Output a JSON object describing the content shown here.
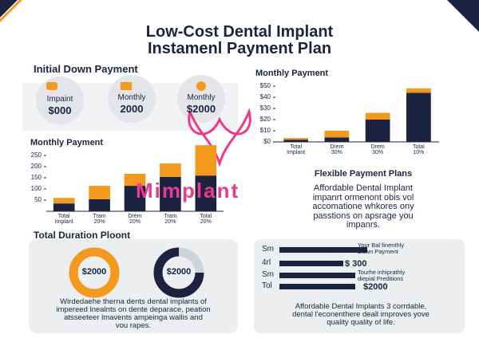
{
  "header": {
    "title": [
      "Low-Cost Dental Implant",
      "Instamenl Payment Plan"
    ]
  },
  "down_payment": {
    "title": "Initial Down Payment",
    "items": [
      {
        "label": "Impaint",
        "amount": "$000"
      },
      {
        "label": "Monthly",
        "amount": "2000"
      },
      {
        "label": "Monthly",
        "amount": "$2000"
      }
    ]
  },
  "chart_data": [
    {
      "type": "bar",
      "stacked": true,
      "title": "Monthly Payment",
      "categories": [
        "Total\nImplant",
        "Drem\n30%",
        "Drem\n30%",
        "Total\n10%"
      ],
      "series": [
        {
          "color": "#1b2340",
          "values": [
            2,
            4,
            20,
            44
          ]
        },
        {
          "color": "#f39a1e",
          "values": [
            1.5,
            6,
            6,
            4
          ]
        }
      ],
      "ylim": [
        0,
        50
      ],
      "yticks": [
        {
          "value": 0,
          "label": "$0"
        },
        {
          "value": 10,
          "label": "$10"
        },
        {
          "value": 20,
          "label": "$20"
        },
        {
          "value": 30,
          "label": "$30"
        },
        {
          "value": 40,
          "label": "$40"
        },
        {
          "value": 50,
          "label": "$50"
        }
      ],
      "grid": false
    },
    {
      "type": "bar",
      "stacked": true,
      "title": "Monthly Payment",
      "categories": [
        "Total\nImplant",
        "Tram\n20%",
        "Drem\n20%",
        "Tram\n20%",
        "Total\n20%"
      ],
      "series": [
        {
          "color": "#1b2340",
          "values": [
            35,
            54,
            114,
            154,
            160
          ]
        },
        {
          "color": "#f39a1e",
          "values": [
            25,
            60,
            54,
            60,
            136
          ]
        }
      ],
      "ylim": [
        0,
        300
      ],
      "yticks": [
        50,
        100,
        150,
        200,
        250
      ],
      "grid": false
    }
  ],
  "watermark": "Mimplant",
  "flexible": {
    "title": "Flexible Payment Plans",
    "lines": [
      "Affordable Dental Implant",
      "impanrt ormenont obis vol",
      "accomatione whkores ony",
      "passtions on apsrage you",
      "impanrs."
    ]
  },
  "duration": {
    "title": "Total Duration Ploont",
    "donuts": [
      "$2000",
      "$2000"
    ],
    "lines": [
      "Wirdedaehe therna dents dental implants of",
      "impereed lnealnts on dente deparace, peation",
      "atsseeteer lmavents ampeinga wallis and",
      "vou rapes."
    ]
  },
  "plan": {
    "rows": [
      "Sm",
      "4rl",
      "Sm",
      "Tol"
    ],
    "notes": [
      "Your Bal finenthly\nDown Payment",
      "$ 300",
      "Tourhe inhiprathly\ndiepial Preditions",
      "$2000"
    ],
    "lines": [
      "Affordable Dental Implants 3 corrdable,",
      "dental l'econenthere deall improves yove",
      "quality quality of life."
    ]
  }
}
